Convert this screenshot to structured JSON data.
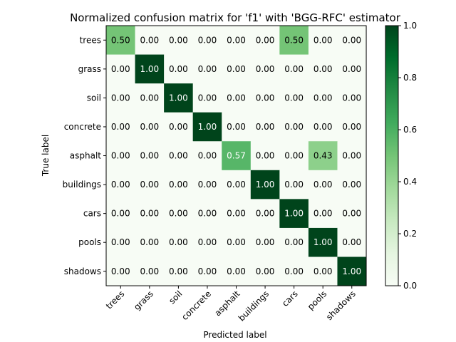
{
  "chart_data": {
    "type": "heatmap",
    "title": "Normalized confusion matrix for 'f1' with 'BGG-RFC' estimator",
    "xlabel": "Predicted label",
    "ylabel": "True label",
    "row_labels": [
      "trees",
      "grass",
      "soil",
      "concrete",
      "asphalt",
      "buildings",
      "cars",
      "pools",
      "shadows"
    ],
    "col_labels": [
      "trees",
      "grass",
      "soil",
      "concrete",
      "asphalt",
      "buildings",
      "cars",
      "pools",
      "shadows"
    ],
    "values": [
      [
        0.5,
        0.0,
        0.0,
        0.0,
        0.0,
        0.0,
        0.5,
        0.0,
        0.0
      ],
      [
        0.0,
        1.0,
        0.0,
        0.0,
        0.0,
        0.0,
        0.0,
        0.0,
        0.0
      ],
      [
        0.0,
        0.0,
        1.0,
        0.0,
        0.0,
        0.0,
        0.0,
        0.0,
        0.0
      ],
      [
        0.0,
        0.0,
        0.0,
        1.0,
        0.0,
        0.0,
        0.0,
        0.0,
        0.0
      ],
      [
        0.0,
        0.0,
        0.0,
        0.0,
        0.57,
        0.0,
        0.0,
        0.43,
        0.0
      ],
      [
        0.0,
        0.0,
        0.0,
        0.0,
        0.0,
        1.0,
        0.0,
        0.0,
        0.0
      ],
      [
        0.0,
        0.0,
        0.0,
        0.0,
        0.0,
        0.0,
        1.0,
        0.0,
        0.0
      ],
      [
        0.0,
        0.0,
        0.0,
        0.0,
        0.0,
        0.0,
        0.0,
        1.0,
        0.0
      ],
      [
        0.0,
        0.0,
        0.0,
        0.0,
        0.0,
        0.0,
        0.0,
        0.0,
        1.0
      ]
    ],
    "value_labels": [
      [
        "0.50",
        "0.00",
        "0.00",
        "0.00",
        "0.00",
        "0.00",
        "0.50",
        "0.00",
        "0.00"
      ],
      [
        "0.00",
        "1.00",
        "0.00",
        "0.00",
        "0.00",
        "0.00",
        "0.00",
        "0.00",
        "0.00"
      ],
      [
        "0.00",
        "0.00",
        "1.00",
        "0.00",
        "0.00",
        "0.00",
        "0.00",
        "0.00",
        "0.00"
      ],
      [
        "0.00",
        "0.00",
        "0.00",
        "1.00",
        "0.00",
        "0.00",
        "0.00",
        "0.00",
        "0.00"
      ],
      [
        "0.00",
        "0.00",
        "0.00",
        "0.00",
        "0.57",
        "0.00",
        "0.00",
        "0.43",
        "0.00"
      ],
      [
        "0.00",
        "0.00",
        "0.00",
        "0.00",
        "0.00",
        "1.00",
        "0.00",
        "0.00",
        "0.00"
      ],
      [
        "0.00",
        "0.00",
        "0.00",
        "0.00",
        "0.00",
        "0.00",
        "1.00",
        "0.00",
        "0.00"
      ],
      [
        "0.00",
        "0.00",
        "0.00",
        "0.00",
        "0.00",
        "0.00",
        "0.00",
        "1.00",
        "0.00"
      ],
      [
        "0.00",
        "0.00",
        "0.00",
        "0.00",
        "0.00",
        "0.00",
        "0.00",
        "0.00",
        "1.00"
      ]
    ],
    "colormap": "Greens",
    "color_range": [
      0.0,
      1.0
    ],
    "colorbar_ticks": [
      "0.0",
      "0.2",
      "0.4",
      "0.6",
      "0.8",
      "1.0"
    ],
    "colorbar_tick_values": [
      0.0,
      0.2,
      0.4,
      0.6,
      0.8,
      1.0
    ],
    "colors": {
      "low": "#f7fcf5",
      "high": "#00441b",
      "text_dark": "#000000",
      "text_light": "#ffffff"
    },
    "grid": false,
    "legend": "colorbar-right"
  }
}
